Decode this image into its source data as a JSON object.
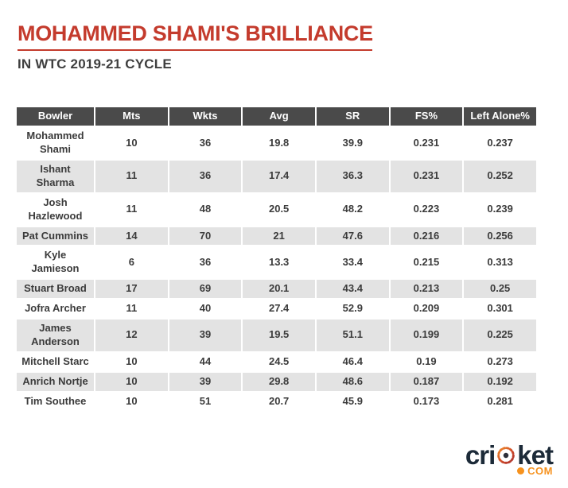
{
  "page": {
    "title": "MOHAMMED SHAMI'S BRILLIANCE",
    "subtitle": "IN WTC 2019-21 CYCLE"
  },
  "chart_data": {
    "type": "table",
    "title": "MOHAMMED SHAMI'S BRILLIANCE",
    "subtitle": "IN WTC 2019-21 CYCLE",
    "columns": [
      "Bowler",
      "Mts",
      "Wkts",
      "Avg",
      "SR",
      "FS%",
      "Left Alone%"
    ],
    "rows": [
      [
        "Mohammed Shami",
        10,
        36,
        19.8,
        39.9,
        0.231,
        0.237
      ],
      [
        "Ishant Sharma",
        11,
        36,
        17.4,
        36.3,
        0.231,
        0.252
      ],
      [
        "Josh Hazlewood",
        11,
        48,
        20.5,
        48.2,
        0.223,
        0.239
      ],
      [
        "Pat Cummins",
        14,
        70,
        21,
        47.6,
        0.216,
        0.256
      ],
      [
        "Kyle Jamieson",
        6,
        36,
        13.3,
        33.4,
        0.215,
        0.313
      ],
      [
        "Stuart Broad",
        17,
        69,
        20.1,
        43.4,
        0.213,
        0.25
      ],
      [
        "Jofra Archer",
        11,
        40,
        27.4,
        52.9,
        0.209,
        0.301
      ],
      [
        "James Anderson",
        12,
        39,
        19.5,
        51.1,
        0.199,
        0.225
      ],
      [
        "Mitchell Starc",
        10,
        44,
        24.5,
        46.4,
        0.19,
        0.273
      ],
      [
        "Anrich Nortje",
        10,
        39,
        29.8,
        48.6,
        0.187,
        0.192
      ],
      [
        "Tim Southee",
        10,
        51,
        20.7,
        45.9,
        0.173,
        0.281
      ]
    ]
  },
  "table": {
    "two_line_names": [
      "Mohammed Shami",
      "Ishant Sharma",
      "Josh Hazlewood",
      "Kyle Jamieson",
      "James Anderson"
    ]
  },
  "logo": {
    "text_before_ball": "cri",
    "text_after_ball": "ket",
    "suffix": "COM"
  },
  "colors": {
    "accent_red": "#c43b2d",
    "header_gray": "#4a4a4a",
    "row_alt_gray": "#e3e3e3",
    "cell_text": "#3b3b3b",
    "logo_navy": "#1c2a38",
    "logo_orange": "#f6921e"
  }
}
